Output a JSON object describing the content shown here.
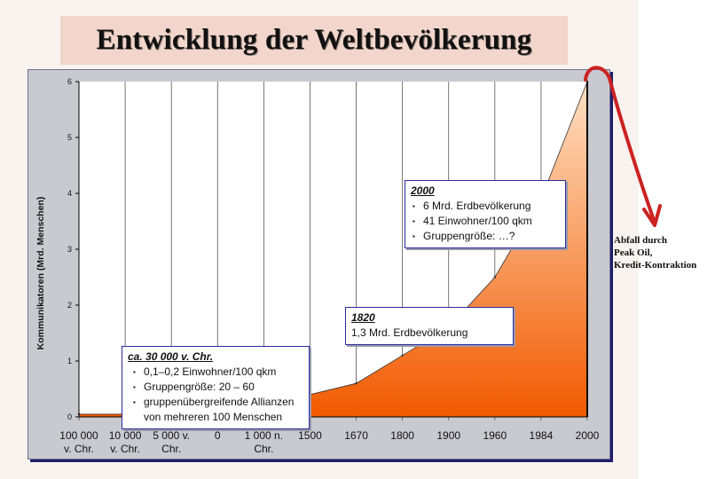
{
  "title": "Entwicklung der Weltbevölkerung",
  "side_note": [
    "Abfall durch",
    "Peak Oil,",
    "Kredit-Kontraktion"
  ],
  "annotations": {
    "box_2000": {
      "heading": "2000",
      "items": [
        "6 Mrd. Erdbevölkerung",
        "41 Einwohner/100 qkm",
        "Gruppengröße: …?"
      ]
    },
    "box_1820": {
      "heading": "1820",
      "text": "1,3 Mrd. Erdbevölkerung"
    },
    "box_30000": {
      "heading": "ca. 30 000 v. Chr.",
      "items": [
        "0,1–0,2 Einwohner/100 qkm",
        "Gruppengröße: 20 – 60",
        "gruppenübergreifende Allianzen von mehreren 100 Menschen"
      ]
    }
  },
  "colors": {
    "area_top": "#ffe0c4",
    "area_bottom": "#f25a00",
    "arrow": "#cc2222",
    "plot_bg": "#ffffff",
    "frame_bg": "#c9c9d0"
  },
  "chart_data": {
    "type": "area",
    "title": "Entwicklung der Weltbevölkerung",
    "xlabel": "",
    "ylabel": "Kommunikatoren (Mrd. Menschen)",
    "categories": [
      "100 000 v. Chr.",
      "10 000 v. Chr.",
      "5 000 v. Chr.",
      "0",
      "1 000 n. Chr.",
      "1500",
      "1670",
      "1800",
      "1900",
      "1960",
      "1984",
      "2000"
    ],
    "category_lines": [
      [
        "100 000",
        "v. Chr."
      ],
      [
        "10 000",
        "v. Chr."
      ],
      [
        "5 000 v.",
        "Chr."
      ],
      [
        "0"
      ],
      [
        "1 000 n.",
        "Chr."
      ],
      [
        "1500"
      ],
      [
        "1670"
      ],
      [
        "1800"
      ],
      [
        "1900"
      ],
      [
        "1960"
      ],
      [
        "1984"
      ],
      [
        "2000"
      ]
    ],
    "values": [
      0.05,
      0.05,
      0.06,
      0.09,
      0.18,
      0.4,
      0.6,
      1.1,
      1.6,
      2.5,
      3.9,
      6.0
    ],
    "ylim": [
      0,
      6
    ],
    "yticks": [
      0,
      1,
      2,
      3,
      4,
      5,
      6
    ],
    "grid": "vertical",
    "legend": "none"
  }
}
